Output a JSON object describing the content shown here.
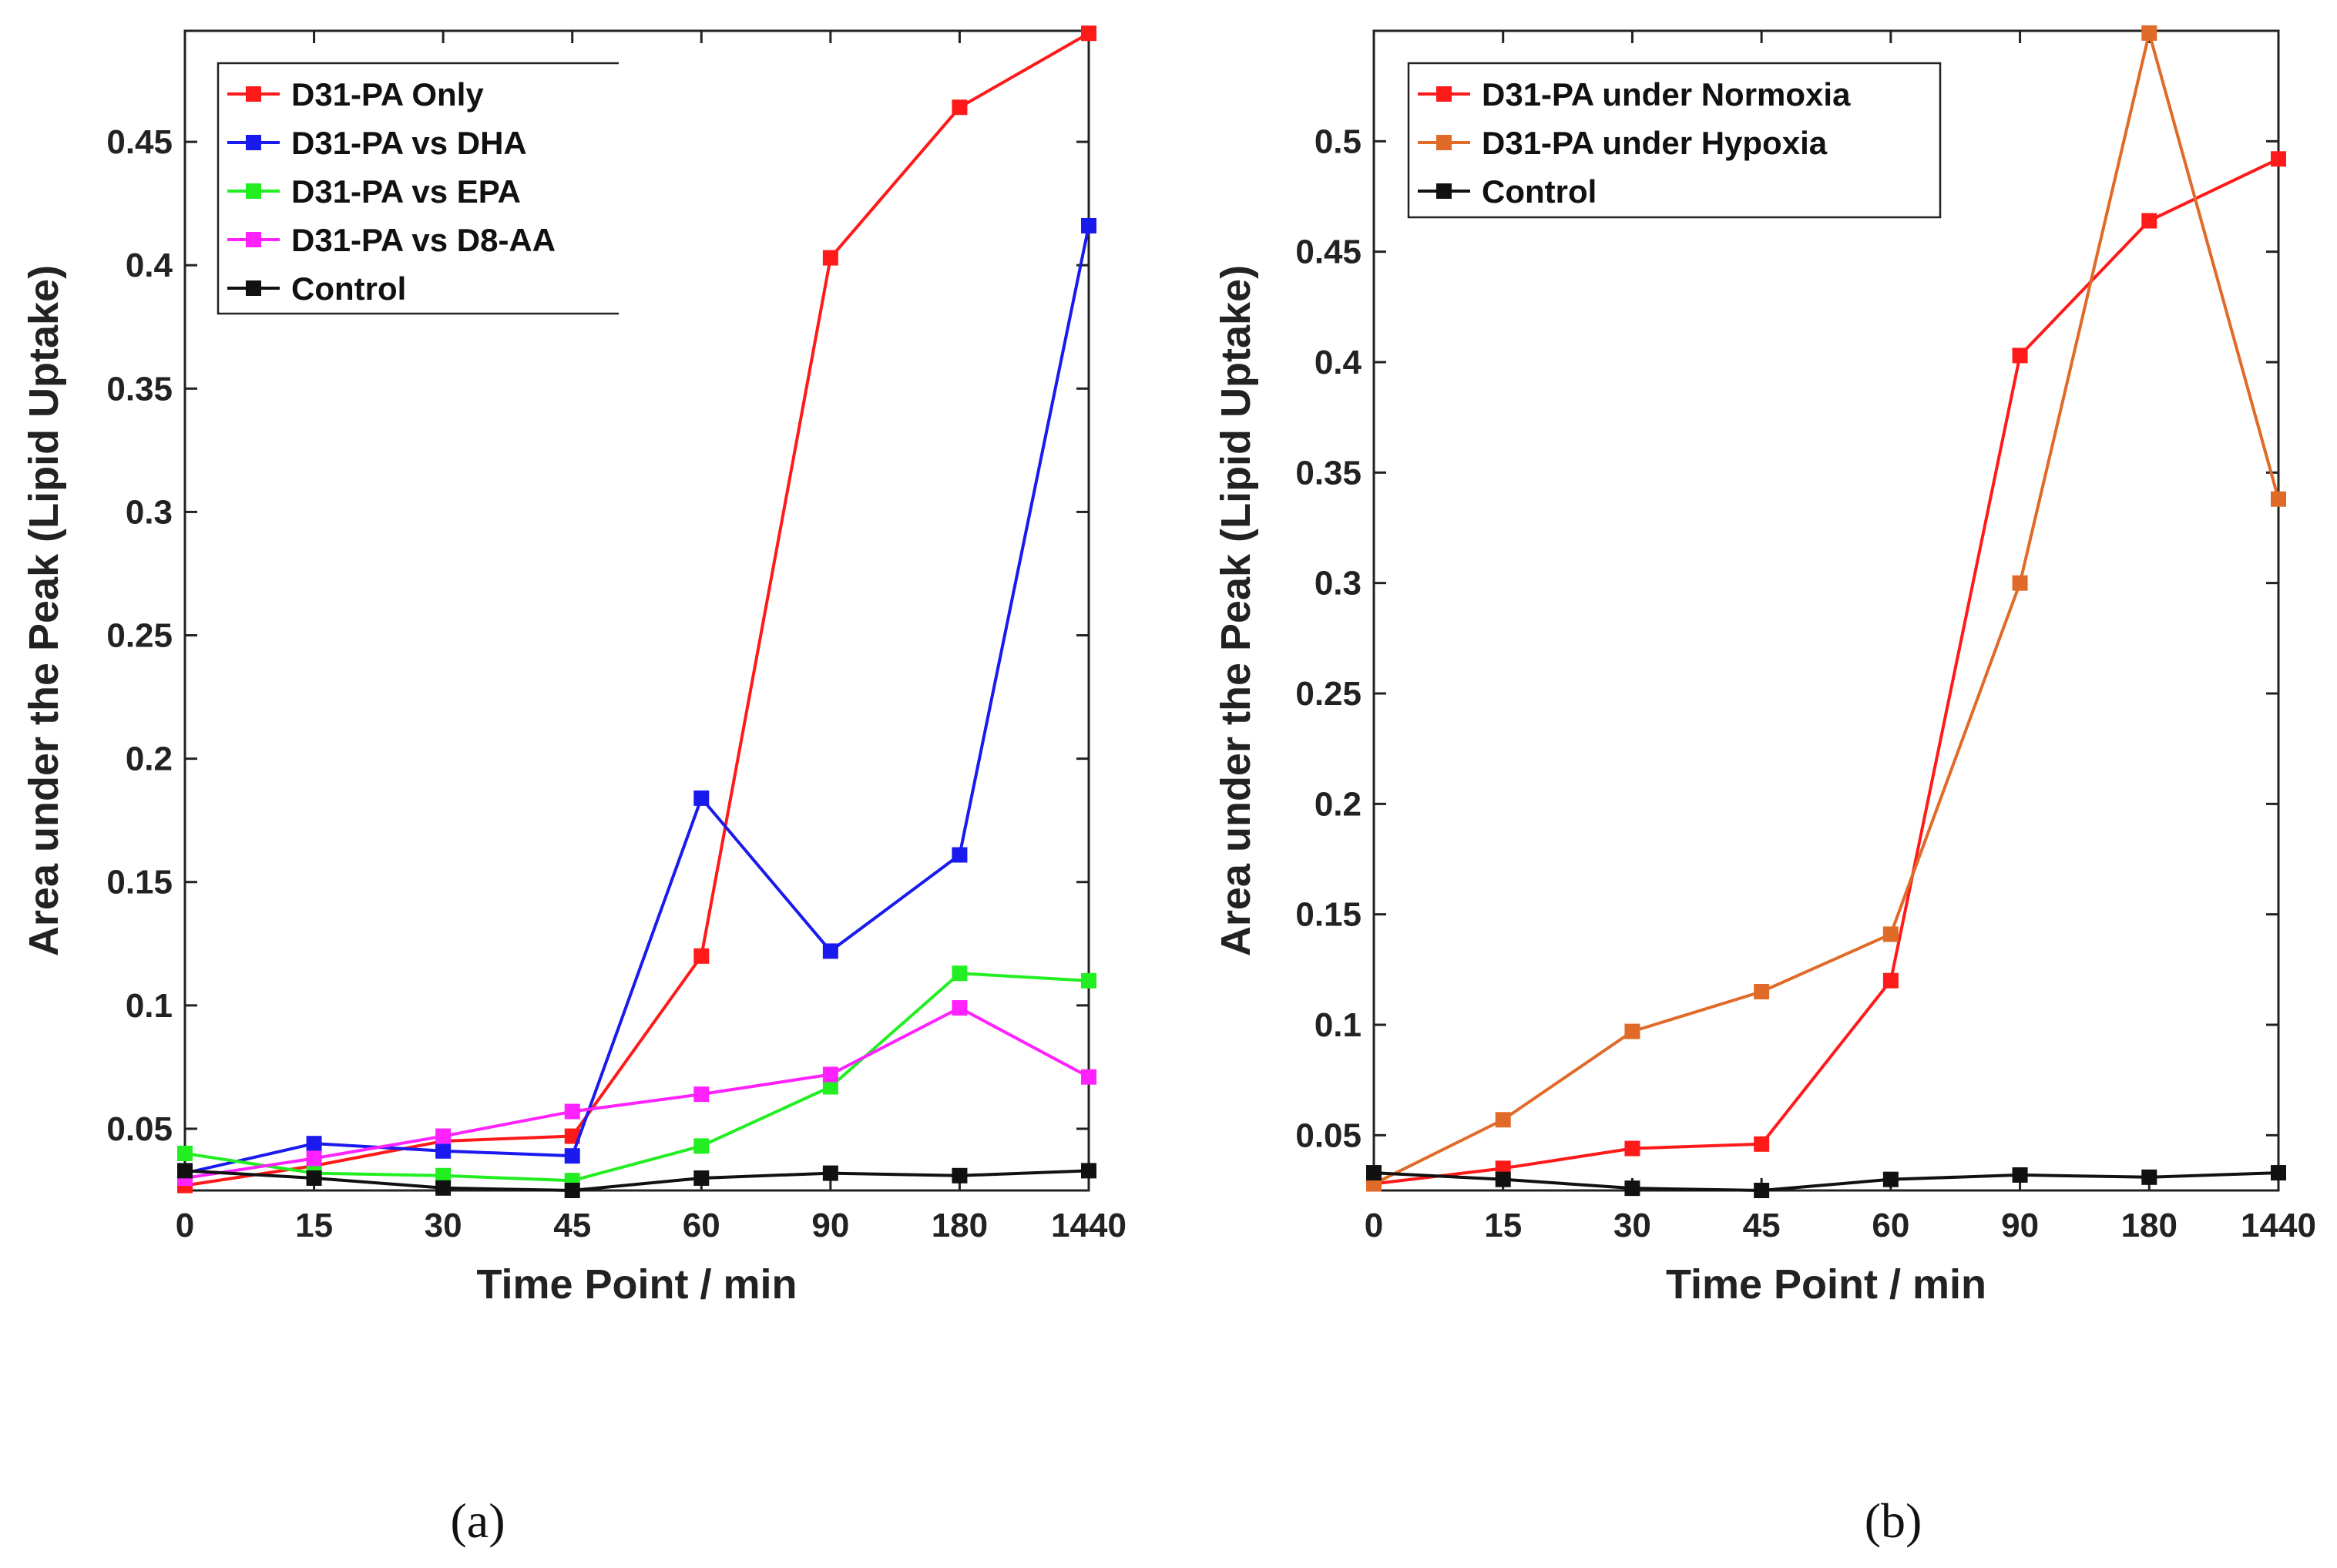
{
  "chart_data": [
    {
      "type": "line",
      "caption": "(a)",
      "xlabel": "Time Point / min",
      "ylabel": "Area under the Peak (Lipid Uptake)",
      "categories": [
        "0",
        "15",
        "30",
        "45",
        "60",
        "90",
        "180",
        "1440"
      ],
      "ylim": [
        0.025,
        0.495
      ],
      "yticks": [
        0.05,
        0.1,
        0.15,
        0.2,
        0.25,
        0.3,
        0.35,
        0.4,
        0.45
      ],
      "ytick_labels": [
        "0.05",
        "0.1",
        "0.15",
        "0.2",
        "0.25",
        "0.3",
        "0.35",
        "0.4",
        "0.45"
      ],
      "legend_position": "top-left",
      "series": [
        {
          "name": "D31-PA Only",
          "color": "#ff1a1a",
          "values": [
            0.027,
            0.035,
            0.045,
            0.047,
            0.12,
            0.403,
            0.464,
            0.494
          ]
        },
        {
          "name": "D31-PA vs DHA",
          "color": "#1a1aee",
          "values": [
            0.032,
            0.044,
            0.041,
            0.039,
            0.184,
            0.122,
            0.161,
            0.416
          ]
        },
        {
          "name": "D31-PA vs EPA",
          "color": "#22ee22",
          "values": [
            0.04,
            0.032,
            0.031,
            0.029,
            0.043,
            0.067,
            0.113,
            0.11
          ]
        },
        {
          "name": "D31-PA vs D8-AA",
          "color": "#ff22ff",
          "values": [
            0.03,
            0.038,
            0.047,
            0.057,
            0.064,
            0.072,
            0.099,
            0.071
          ]
        },
        {
          "name": "Control",
          "color": "#111111",
          "values": [
            0.033,
            0.03,
            0.026,
            0.025,
            0.03,
            0.032,
            0.031,
            0.033
          ]
        }
      ]
    },
    {
      "type": "line",
      "caption": "(b)",
      "xlabel": "Time Point / min",
      "ylabel": "Area under the Peak (Lipid Uptake)",
      "categories": [
        "0",
        "15",
        "30",
        "45",
        "60",
        "90",
        "180",
        "1440"
      ],
      "ylim": [
        0.025,
        0.55
      ],
      "yticks": [
        0.05,
        0.1,
        0.15,
        0.2,
        0.25,
        0.3,
        0.35,
        0.4,
        0.45,
        0.5
      ],
      "ytick_labels": [
        "0.05",
        "0.1",
        "0.15",
        "0.2",
        "0.25",
        "0.3",
        "0.35",
        "0.4",
        "0.45",
        "0.5"
      ],
      "legend_position": "top-left",
      "series": [
        {
          "name": "D31-PA under Normoxia",
          "color": "#ff1a1a",
          "values": [
            0.028,
            0.035,
            0.044,
            0.046,
            0.12,
            0.403,
            0.464,
            0.492
          ]
        },
        {
          "name": "D31-PA under Hypoxia",
          "color": "#e06a28",
          "values": [
            0.028,
            0.057,
            0.097,
            0.115,
            0.141,
            0.3,
            0.549,
            0.338
          ]
        },
        {
          "name": "Control",
          "color": "#111111",
          "values": [
            0.033,
            0.03,
            0.026,
            0.025,
            0.03,
            0.032,
            0.031,
            0.033
          ]
        }
      ]
    }
  ]
}
